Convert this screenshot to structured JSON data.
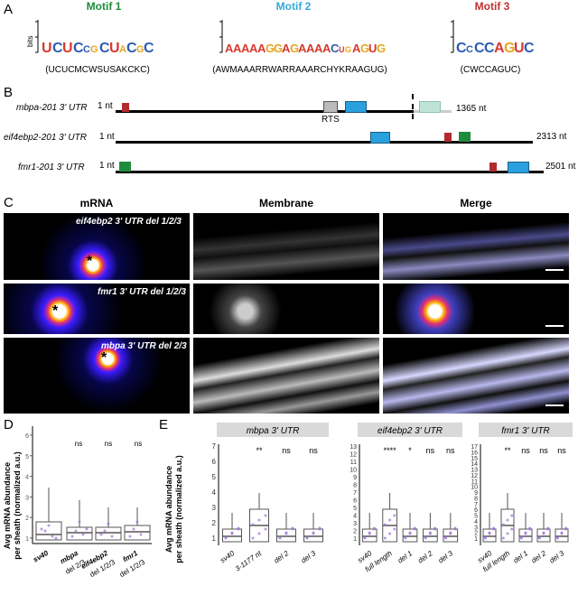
{
  "panels": {
    "A": "A",
    "B": "B",
    "C": "C",
    "D": "D",
    "E": "E"
  },
  "motifs": [
    {
      "title": "Motif 1",
      "color": "#1f8c3b",
      "sequence": "(UCUCMCWSUSAKCKC)",
      "ylabel": "bits",
      "ticks": [
        "2",
        "1",
        "0"
      ]
    },
    {
      "title": "Motif 2",
      "color": "#33a9dc",
      "sequence": "(AWMAAARRWARRAAARCHYKRAAGUG)",
      "ylabel": "bits",
      "ticks": [
        "2",
        "1",
        "0"
      ]
    },
    {
      "title": "Motif 3",
      "color": "#c0332f",
      "sequence": "(CWCCAGUC)",
      "ylabel": "bits",
      "ticks": [
        "2",
        "1",
        "0"
      ]
    }
  ],
  "utrs": [
    {
      "name": "mbpa-201 3' UTR",
      "start": "1 nt",
      "end": "1365 nt",
      "annotation": "RTS"
    },
    {
      "name": "eif4ebp2-201 3' UTR",
      "start": "1 nt",
      "end": "2313 nt"
    },
    {
      "name": "fmr1-201 3' UTR",
      "start": "1 nt",
      "end": "2501 nt"
    }
  ],
  "panelC": {
    "columns": [
      "mRNA",
      "Membrane",
      "Merge"
    ],
    "rows": [
      {
        "label": "eif4ebp2 3' UTR del 1/2/3",
        "marker": "*"
      },
      {
        "label": "fmr1 3' UTR del 1/2/3",
        "marker": "*"
      },
      {
        "label": "mbpa 3' UTR del 2/3",
        "marker": "*"
      }
    ]
  },
  "panelD": {
    "ylabel": "Avg mRNA abundance per sheath (normalized a.u.)",
    "yticks": [
      "6",
      "5",
      "4",
      "3",
      "2",
      "1"
    ],
    "categories": [
      "sv40",
      "mbpa del 2/3",
      "eif4ebp2 del 1/2/3",
      "fmr1 del 1/2/3"
    ],
    "sig": [
      "",
      "ns",
      "ns",
      "ns"
    ]
  },
  "panelE": {
    "ylabel": "Avg mRNA abundance per sheath (normalized a.u.)",
    "groups": [
      {
        "title": "mbpa 3' UTR",
        "yticks": [
          "7",
          "6",
          "5",
          "4",
          "3",
          "2",
          "1"
        ],
        "categories": [
          "sv40",
          "3-1177 nt",
          "del 2",
          "del 3"
        ],
        "sig": [
          "",
          "**",
          "ns",
          "ns"
        ]
      },
      {
        "title": "eif4ebp2 3' UTR",
        "yticks": [
          "13",
          "12",
          "11",
          "10",
          "9",
          "8",
          "7",
          "6",
          "5",
          "4",
          "3",
          "2",
          "1"
        ],
        "categories": [
          "sv40",
          "full length",
          "del 1",
          "del 2",
          "del 3"
        ],
        "sig": [
          "",
          "****",
          "*",
          "ns",
          "ns"
        ]
      },
      {
        "title": "fmr1 3' UTR",
        "yticks": [
          "17",
          "16",
          "15",
          "14",
          "13",
          "12",
          "11",
          "10",
          "9",
          "8",
          "7",
          "6",
          "5",
          "4",
          "3",
          "2",
          "1"
        ],
        "categories": [
          "sv40",
          "full length",
          "del 1",
          "del 2",
          "del 3"
        ],
        "sig": [
          "",
          "**",
          "ns",
          "ns",
          "ns"
        ]
      }
    ]
  }
}
